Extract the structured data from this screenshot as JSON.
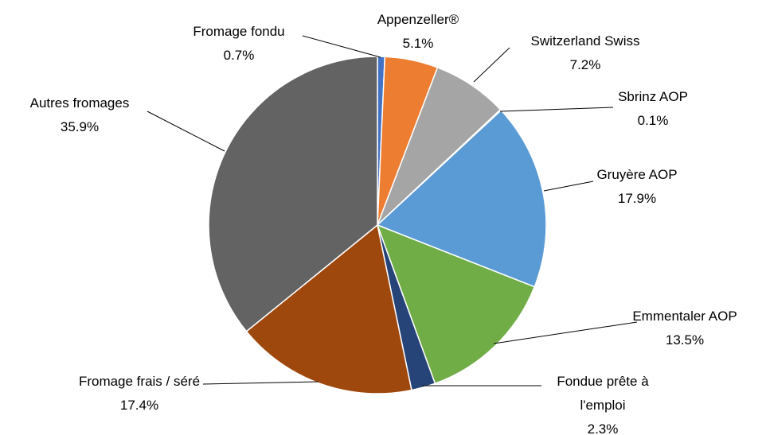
{
  "chart_data": {
    "type": "pie",
    "categories": [
      "Fromage fondu",
      "Appenzeller®",
      "Switzerland Swiss",
      "Sbrinz AOP",
      "Gruyère AOP",
      "Emmentaler AOP",
      "Fondue prête à l'emploi",
      "Fromage frais / séré",
      "Autres fromages"
    ],
    "values": [
      0.7,
      5.1,
      7.2,
      0.1,
      17.9,
      13.5,
      2.3,
      17.4,
      35.9
    ],
    "value_labels": [
      "0.7%",
      "5.1%",
      "7.2%",
      "0.1%",
      "17.9%",
      "13.5%",
      "2.3%",
      "17.4%",
      "35.9%"
    ],
    "colors": [
      "#4472c4",
      "#ed7d31",
      "#a5a5a5",
      "#ffc000",
      "#5b9bd5",
      "#70ad47",
      "#264478",
      "#9e480e",
      "#636363"
    ]
  }
}
